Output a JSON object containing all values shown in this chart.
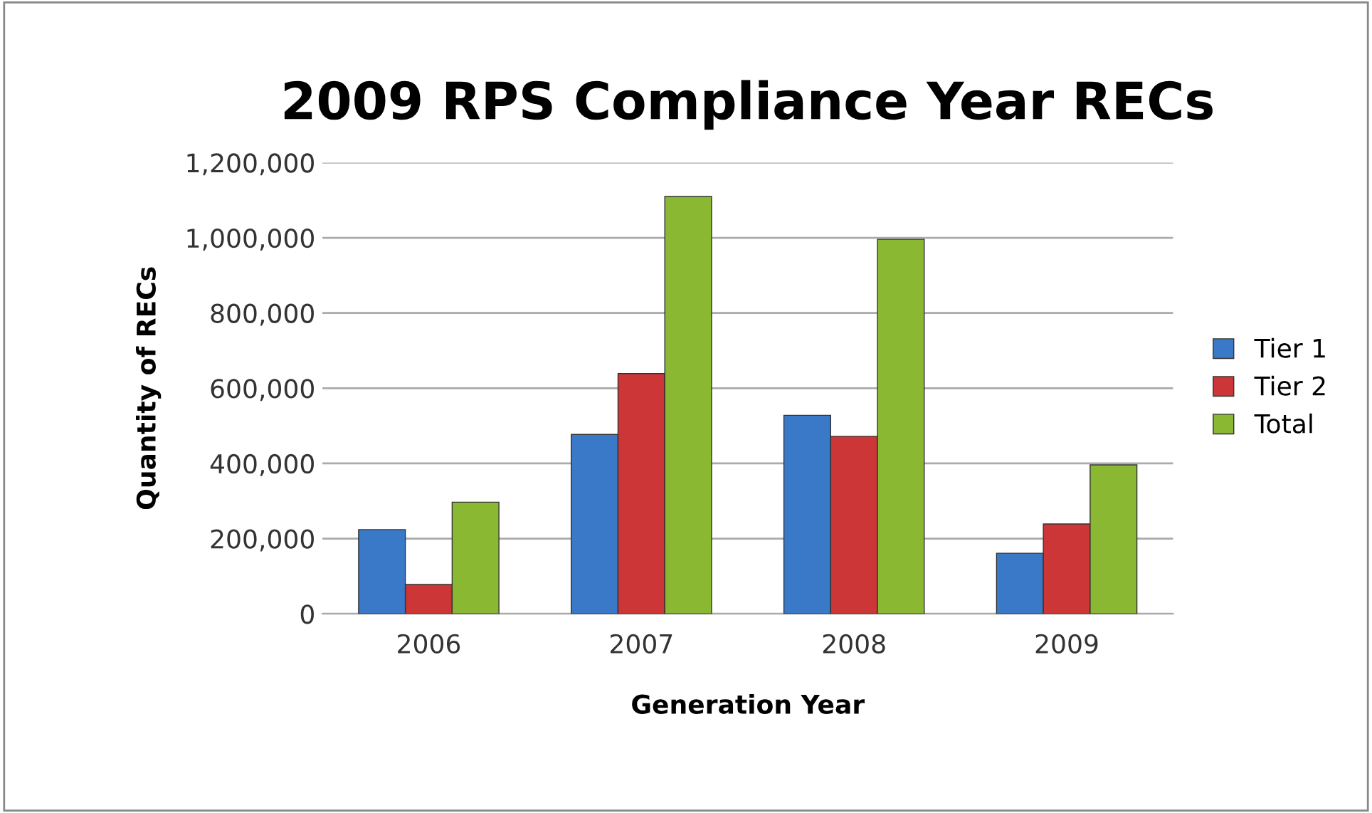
{
  "chart_data": {
    "type": "bar",
    "title": "2009 RPS Compliance Year RECs",
    "xlabel": "Generation Year",
    "ylabel": "Quantity of RECs",
    "categories": [
      "2006",
      "2007",
      "2008",
      "2009"
    ],
    "series": [
      {
        "name": "Tier 1",
        "color": "#3a78c8",
        "values": [
          224000,
          477000,
          528000,
          161000
        ]
      },
      {
        "name": "Tier 2",
        "color": "#cc3636",
        "values": [
          78000,
          639000,
          472000,
          239000
        ]
      },
      {
        "name": "Total",
        "color": "#8ab833",
        "values": [
          297000,
          1110000,
          996000,
          396000
        ]
      }
    ],
    "ylim": [
      0,
      1200000
    ],
    "yticks": [
      {
        "value": 0,
        "label": "0"
      },
      {
        "value": 200000,
        "label": "200,000"
      },
      {
        "value": 400000,
        "label": "400,000"
      },
      {
        "value": 600000,
        "label": "600,000"
      },
      {
        "value": 800000,
        "label": "800,000"
      },
      {
        "value": 1000000,
        "label": "1,000,000"
      },
      {
        "value": 1200000,
        "label": "1,200,000"
      }
    ],
    "grid": "y",
    "legend": "right"
  }
}
